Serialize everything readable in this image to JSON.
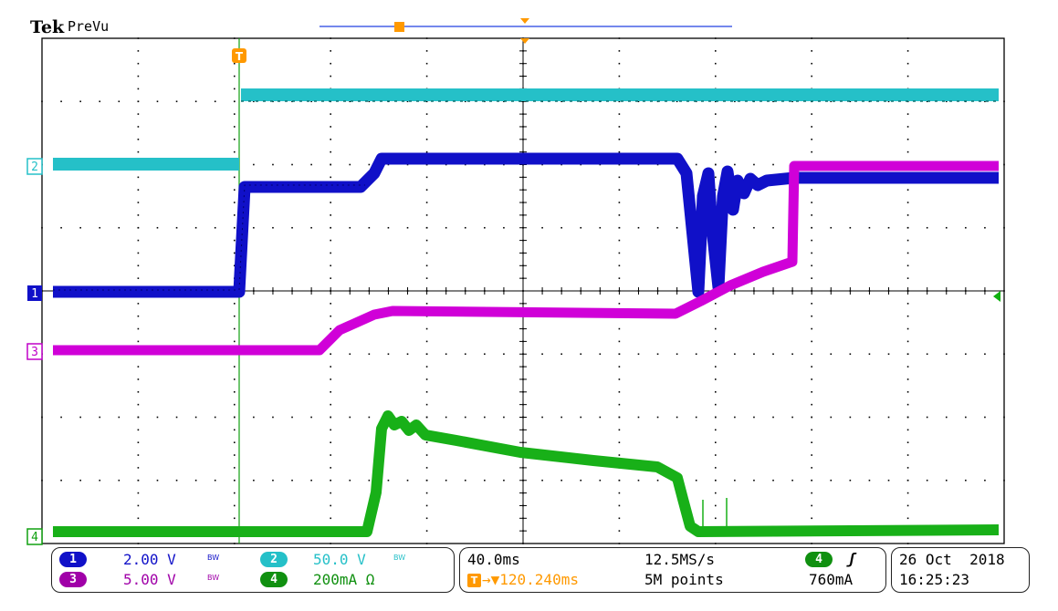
{
  "header": {
    "brand": "Tek",
    "mode": "PreVu",
    "trigger_marker": "T"
  },
  "colors": {
    "ch1": "#1010c8",
    "ch2": "#25c0c8",
    "ch3": "#c000c8",
    "ch4": "#10b010",
    "trigger": "#ff9900",
    "grid": "#000000"
  },
  "channels": [
    {
      "id": "1",
      "scale": "2.00 V",
      "bw": "BW",
      "color": "#1010c8"
    },
    {
      "id": "2",
      "scale": "50.0 V",
      "bw": "BW",
      "color": "#25c0c8"
    },
    {
      "id": "3",
      "scale": "5.00 V",
      "bw": "BW",
      "color": "#a000a8"
    },
    {
      "id": "4",
      "scale": "200mA Ω",
      "bw": "",
      "color": "#109010"
    }
  ],
  "horizontal": {
    "time_div": "40.0ms",
    "sample_rate": "12.5MS/s",
    "record_length": "5M points",
    "trigger_position": "→▼120.240ms"
  },
  "trigger": {
    "source": "4",
    "slope_icon": "rising-edge",
    "slope_glyph": "ʃ",
    "level": "760mA"
  },
  "datetime": {
    "date": "26 Oct  2018",
    "time": "16:25:23"
  }
}
